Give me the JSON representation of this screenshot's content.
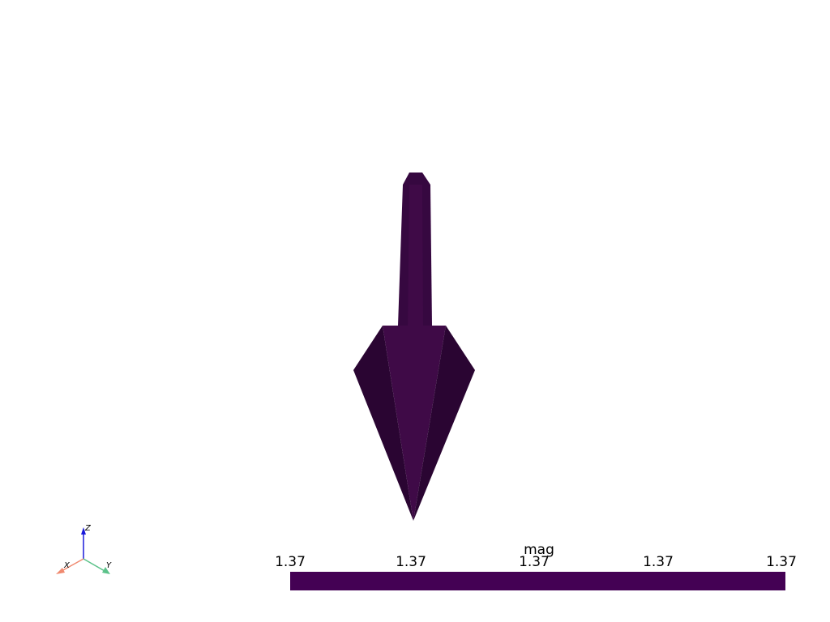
{
  "scene": {
    "background": "#ffffff",
    "object": "arrow",
    "colors": {
      "face_light": "#3f0a47",
      "face_mid": "#360840",
      "face_dark": "#2a0532"
    }
  },
  "axes_widget": {
    "x_label": "X",
    "y_label": "Y",
    "z_label": "Z",
    "x_color": "#f08a70",
    "y_color": "#5cc28a",
    "z_color": "#1a1adb"
  },
  "scalar_bar": {
    "title": "mag",
    "tick_labels": [
      "1.37",
      "1.37",
      "1.37",
      "1.37",
      "1.37"
    ],
    "color": "#440154"
  }
}
